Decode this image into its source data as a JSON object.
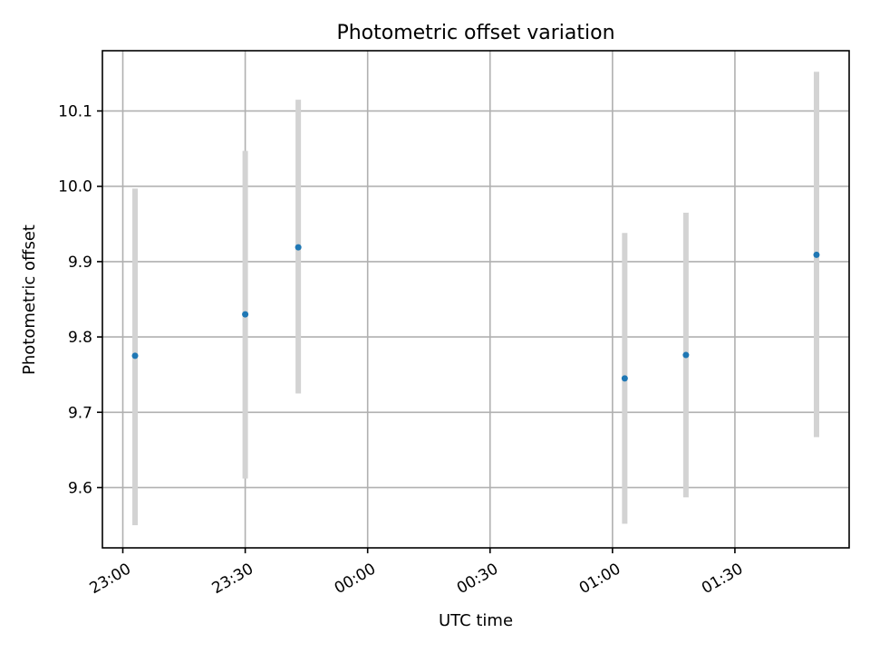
{
  "chart_data": {
    "type": "scatter",
    "title": "Photometric offset variation",
    "xlabel": "UTC time",
    "ylabel": "Photometric offset",
    "x_ticks": [
      "23:00",
      "23:30",
      "00:00",
      "00:30",
      "01:00",
      "01:30"
    ],
    "y_ticks": [
      "9.6",
      "9.7",
      "9.8",
      "9.9",
      "10.0",
      "10.1"
    ],
    "xlim": [
      "22:55",
      "01:58"
    ],
    "ylim": [
      9.52,
      10.18
    ],
    "grid": true,
    "x_unit": "minutes since 23:00 UTC",
    "points": [
      {
        "x": "23:03",
        "y": 9.775,
        "err_low": 9.55,
        "err_high": 9.997
      },
      {
        "x": "23:30",
        "y": 9.83,
        "err_low": 9.612,
        "err_high": 10.047
      },
      {
        "x": "23:43",
        "y": 9.919,
        "err_low": 9.725,
        "err_high": 10.115
      },
      {
        "x": "01:03",
        "y": 9.745,
        "err_low": 9.552,
        "err_high": 9.938
      },
      {
        "x": "01:18",
        "y": 9.776,
        "err_low": 9.587,
        "err_high": 9.965
      },
      {
        "x": "01:50",
        "y": 9.909,
        "err_low": 9.667,
        "err_high": 10.152
      }
    ],
    "colors": {
      "point": "#1f77b4",
      "errorbar": "#d3d3d3",
      "grid": "#b0b0b0"
    }
  }
}
